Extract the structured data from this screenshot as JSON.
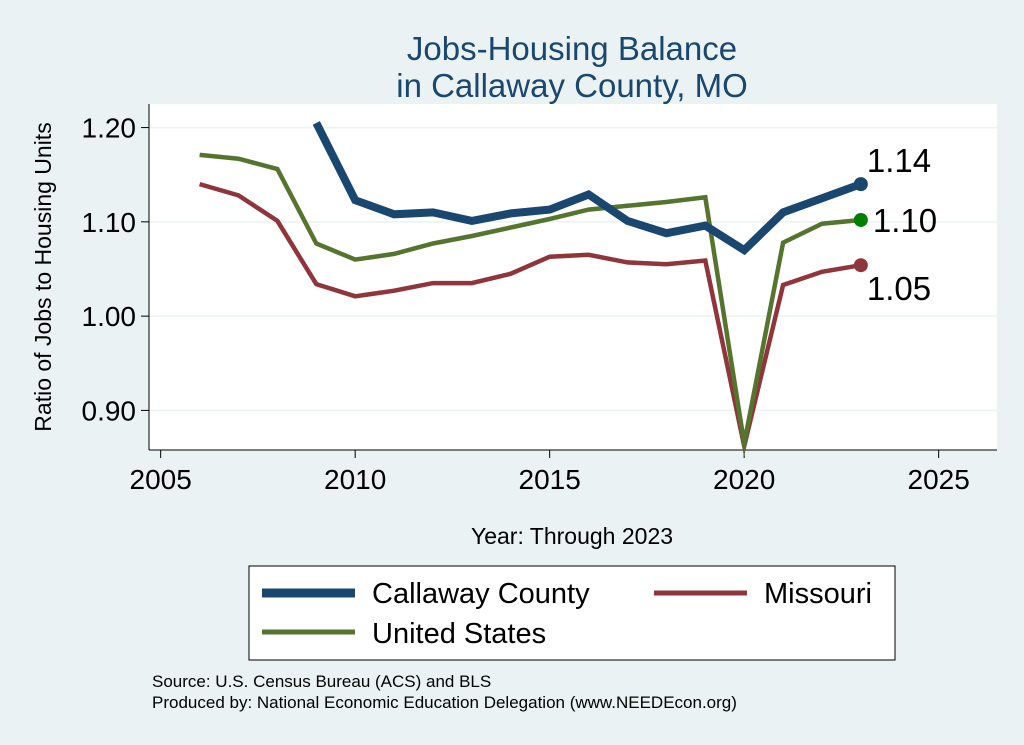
{
  "chart_data": {
    "type": "line",
    "title": [
      "Jobs-Housing Balance",
      "in Callaway County, MO"
    ],
    "xlabel": "Year: Through 2023",
    "ylabel": "Ratio of Jobs to Housing Units",
    "xlim": [
      2004.7,
      2026.5
    ],
    "ylim": [
      0.858,
      1.225
    ],
    "xticks": [
      2005,
      2010,
      2015,
      2020,
      2025
    ],
    "yticks": [
      0.9,
      1.0,
      1.1,
      1.2
    ],
    "ytick_labels": [
      "0.90",
      "1.00",
      "1.10",
      "1.20"
    ],
    "grid": "horizontal",
    "legend_position": "bottom",
    "series": [
      {
        "name": "Callaway County",
        "color": "#1a476f",
        "x": [
          2009,
          2010,
          2011,
          2012,
          2013,
          2014,
          2015,
          2016,
          2017,
          2018,
          2019,
          2020,
          2021,
          2022,
          2023
        ],
        "values": [
          1.205,
          1.123,
          1.108,
          1.11,
          1.101,
          1.109,
          1.113,
          1.129,
          1.101,
          1.088,
          1.096,
          1.07,
          1.11,
          1.125,
          1.14
        ],
        "end_label": "1.14"
      },
      {
        "name": "Missouri",
        "color": "#90353b",
        "x": [
          2006,
          2007,
          2008,
          2009,
          2010,
          2011,
          2012,
          2013,
          2014,
          2015,
          2016,
          2017,
          2018,
          2019,
          2020,
          2021,
          2022,
          2023
        ],
        "values": [
          1.14,
          1.128,
          1.101,
          1.034,
          1.021,
          1.027,
          1.035,
          1.035,
          1.045,
          1.063,
          1.065,
          1.057,
          1.055,
          1.059,
          0.862,
          1.033,
          1.047,
          1.054
        ],
        "end_label": "1.05"
      },
      {
        "name": "United States",
        "color": "#55752f",
        "x": [
          2006,
          2007,
          2008,
          2009,
          2010,
          2011,
          2012,
          2013,
          2014,
          2015,
          2016,
          2017,
          2018,
          2019,
          2020,
          2021,
          2022,
          2023
        ],
        "values": [
          1.171,
          1.167,
          1.156,
          1.077,
          1.06,
          1.066,
          1.077,
          1.085,
          1.094,
          1.103,
          1.113,
          1.117,
          1.121,
          1.126,
          0.865,
          1.078,
          1.098,
          1.102
        ],
        "end_label": "1.10",
        "end_marker_color": "#008000"
      }
    ]
  },
  "legend": {
    "items": [
      "Callaway County",
      "Missouri",
      "United States"
    ]
  },
  "notes": {
    "source": "Source: U.S. Census Bureau (ACS) and BLS",
    "produced": "Produced by: National Economic Education Delegation (www.NEEDEcon.org)"
  }
}
